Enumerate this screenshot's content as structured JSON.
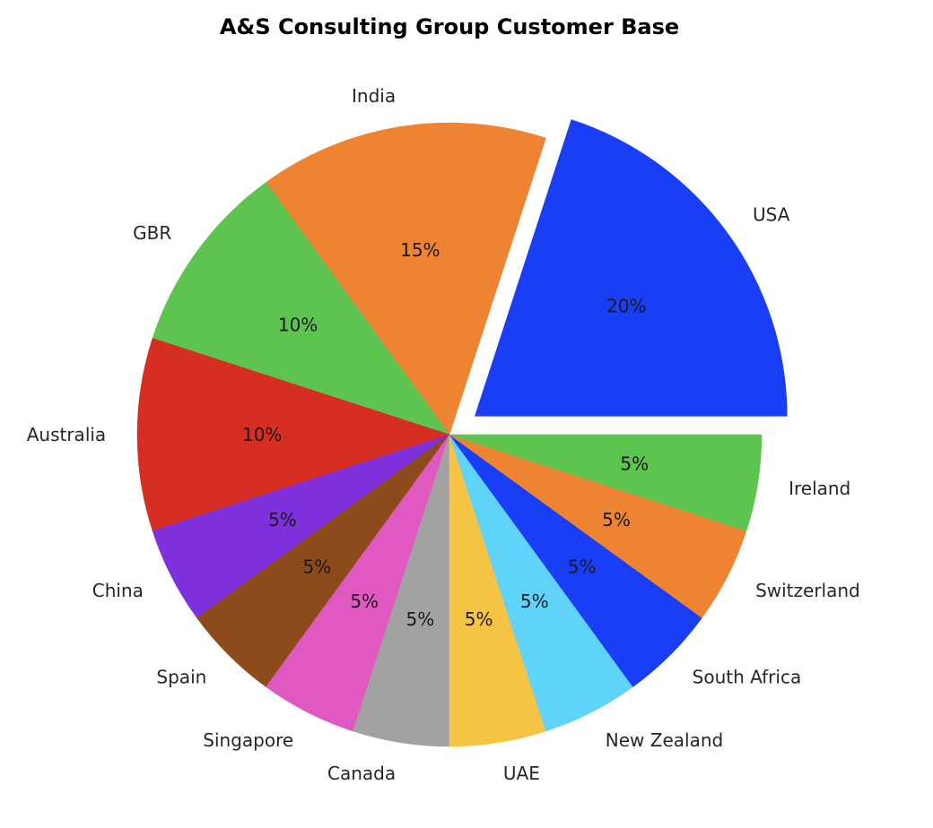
{
  "chart_data": {
    "type": "pie",
    "title": "A&S Consulting Group Customer Base",
    "start_angle_deg": 0,
    "direction": "counterclockwise",
    "legend": "none",
    "slices": [
      {
        "label": "USA",
        "value": 20,
        "pct_label": "20%",
        "color": "#1a3ef5",
        "exploded": true
      },
      {
        "label": "India",
        "value": 15,
        "pct_label": "15%",
        "color": "#ee8431",
        "exploded": false
      },
      {
        "label": "GBR",
        "value": 10,
        "pct_label": "10%",
        "color": "#5dc44f",
        "exploded": false
      },
      {
        "label": "Australia",
        "value": 10,
        "pct_label": "10%",
        "color": "#d62e22",
        "exploded": false
      },
      {
        "label": "China",
        "value": 5,
        "pct_label": "5%",
        "color": "#7f30dd",
        "exploded": false
      },
      {
        "label": "Spain",
        "value": 5,
        "pct_label": "5%",
        "color": "#8d4a1b",
        "exploded": false
      },
      {
        "label": "Singapore",
        "value": 5,
        "pct_label": "5%",
        "color": "#df59c1",
        "exploded": false
      },
      {
        "label": "Canada",
        "value": 5,
        "pct_label": "5%",
        "color": "#a2a2a2",
        "exploded": false
      },
      {
        "label": "UAE",
        "value": 5,
        "pct_label": "5%",
        "color": "#f6c445",
        "exploded": false
      },
      {
        "label": "New Zealand",
        "value": 5,
        "pct_label": "5%",
        "color": "#60d3fa",
        "exploded": false
      },
      {
        "label": "South Africa",
        "value": 5,
        "pct_label": "5%",
        "color": "#1a3ef5",
        "exploded": false
      },
      {
        "label": "Switzerland",
        "value": 5,
        "pct_label": "5%",
        "color": "#ee8431",
        "exploded": false
      },
      {
        "label": "Ireland",
        "value": 5,
        "pct_label": "5%",
        "color": "#5dc44f",
        "exploded": false
      }
    ]
  }
}
